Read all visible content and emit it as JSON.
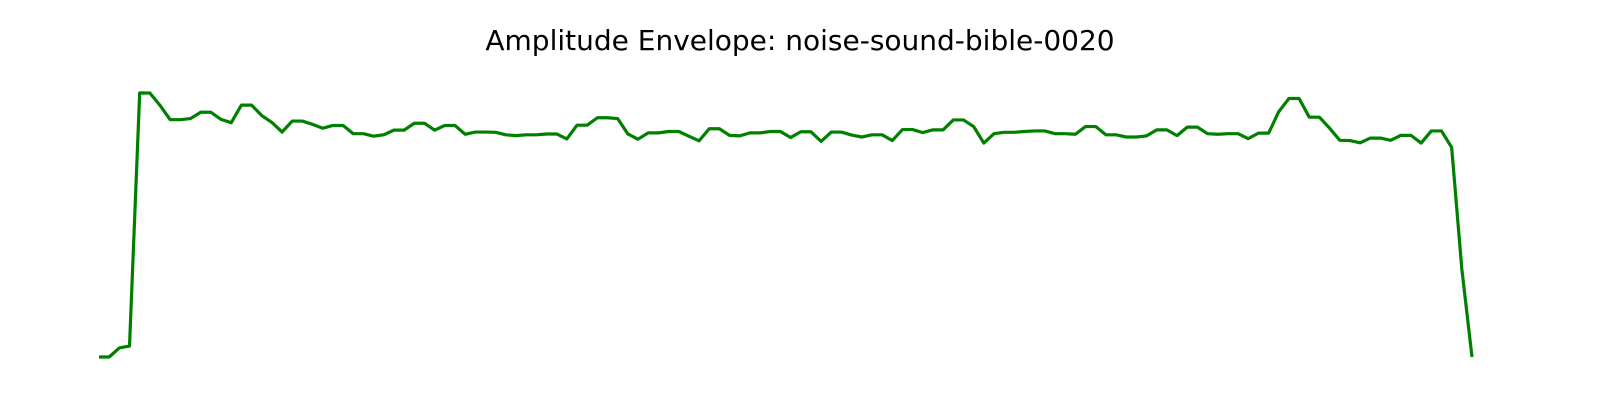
{
  "chart_data": {
    "type": "line",
    "title": "Amplitude Envelope: noise-sound-bible-0020",
    "xlabel": "",
    "ylabel": "",
    "axes_visible": false,
    "grid": false,
    "ylim": [
      0.0,
      1.0
    ],
    "series": [
      {
        "color": "#008000",
        "values": [
          0.0,
          0.0,
          0.033,
          0.04,
          0.96,
          0.96,
          0.915,
          0.863,
          0.863,
          0.867,
          0.89,
          0.89,
          0.864,
          0.852,
          0.916,
          0.916,
          0.878,
          0.853,
          0.818,
          0.858,
          0.858,
          0.846,
          0.832,
          0.842,
          0.842,
          0.812,
          0.812,
          0.803,
          0.808,
          0.825,
          0.825,
          0.85,
          0.85,
          0.825,
          0.842,
          0.842,
          0.81,
          0.818,
          0.818,
          0.817,
          0.808,
          0.805,
          0.808,
          0.808,
          0.811,
          0.811,
          0.793,
          0.843,
          0.843,
          0.87,
          0.87,
          0.867,
          0.811,
          0.792,
          0.815,
          0.815,
          0.82,
          0.82,
          0.803,
          0.786,
          0.83,
          0.83,
          0.806,
          0.804,
          0.815,
          0.815,
          0.82,
          0.82,
          0.798,
          0.819,
          0.819,
          0.784,
          0.818,
          0.818,
          0.807,
          0.8,
          0.808,
          0.808,
          0.787,
          0.827,
          0.827,
          0.816,
          0.826,
          0.826,
          0.862,
          0.862,
          0.838,
          0.778,
          0.812,
          0.817,
          0.817,
          0.82,
          0.822,
          0.822,
          0.812,
          0.812,
          0.81,
          0.838,
          0.838,
          0.808,
          0.808,
          0.8,
          0.8,
          0.804,
          0.826,
          0.826,
          0.805,
          0.836,
          0.836,
          0.812,
          0.81,
          0.812,
          0.812,
          0.794,
          0.814,
          0.814,
          0.892,
          0.94,
          0.94,
          0.872,
          0.872,
          0.832,
          0.788,
          0.787,
          0.779,
          0.796,
          0.796,
          0.788,
          0.806,
          0.806,
          0.778,
          0.822,
          0.822,
          0.762,
          0.32,
          0.0
        ]
      }
    ]
  }
}
